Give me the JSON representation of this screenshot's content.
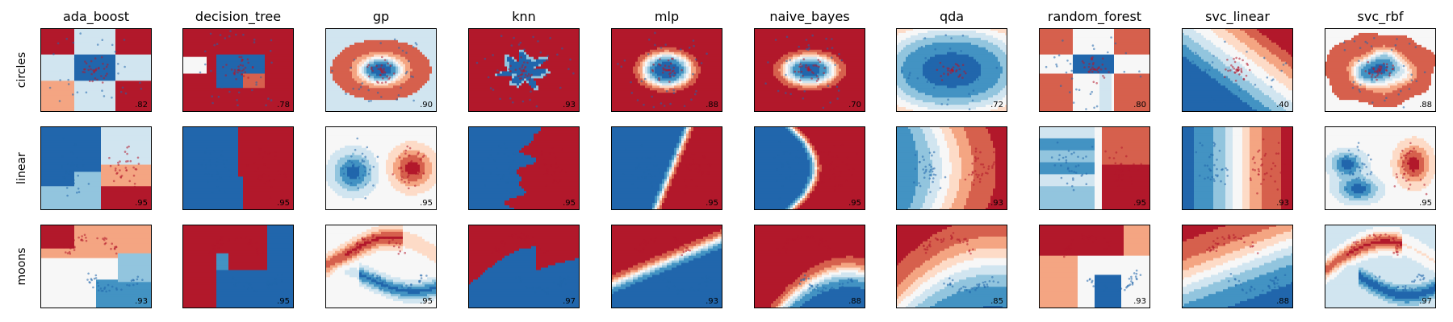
{
  "chart_data": {
    "type": "heatmap",
    "title": "",
    "classifiers": [
      "ada_boost",
      "decision_tree",
      "gp",
      "knn",
      "mlp",
      "naive_bayes",
      "qda",
      "random_forest",
      "svc_linear",
      "svc_rbf"
    ],
    "datasets": [
      "circles",
      "linear",
      "moons"
    ],
    "scores": {
      "circles": [
        ".82",
        ".78",
        ".90",
        ".93",
        ".88",
        ".70",
        ".72",
        ".80",
        ".40",
        ".88"
      ],
      "linear": [
        ".95",
        ".95",
        ".95",
        ".95",
        ".95",
        ".95",
        ".93",
        ".95",
        ".93",
        ".95"
      ],
      "moons": [
        ".93",
        ".95",
        ".95",
        ".97",
        ".93",
        ".88",
        ".85",
        ".93",
        ".88",
        ".97"
      ]
    },
    "colormap": [
      "#2166ac",
      "#4393c3",
      "#92c5de",
      "#d1e5f0",
      "#f7f7f7",
      "#fddbc7",
      "#f4a582",
      "#d6604d",
      "#b2182b"
    ],
    "class_colors": {
      "red": "#b2182b",
      "blue": "#2166ac"
    }
  }
}
